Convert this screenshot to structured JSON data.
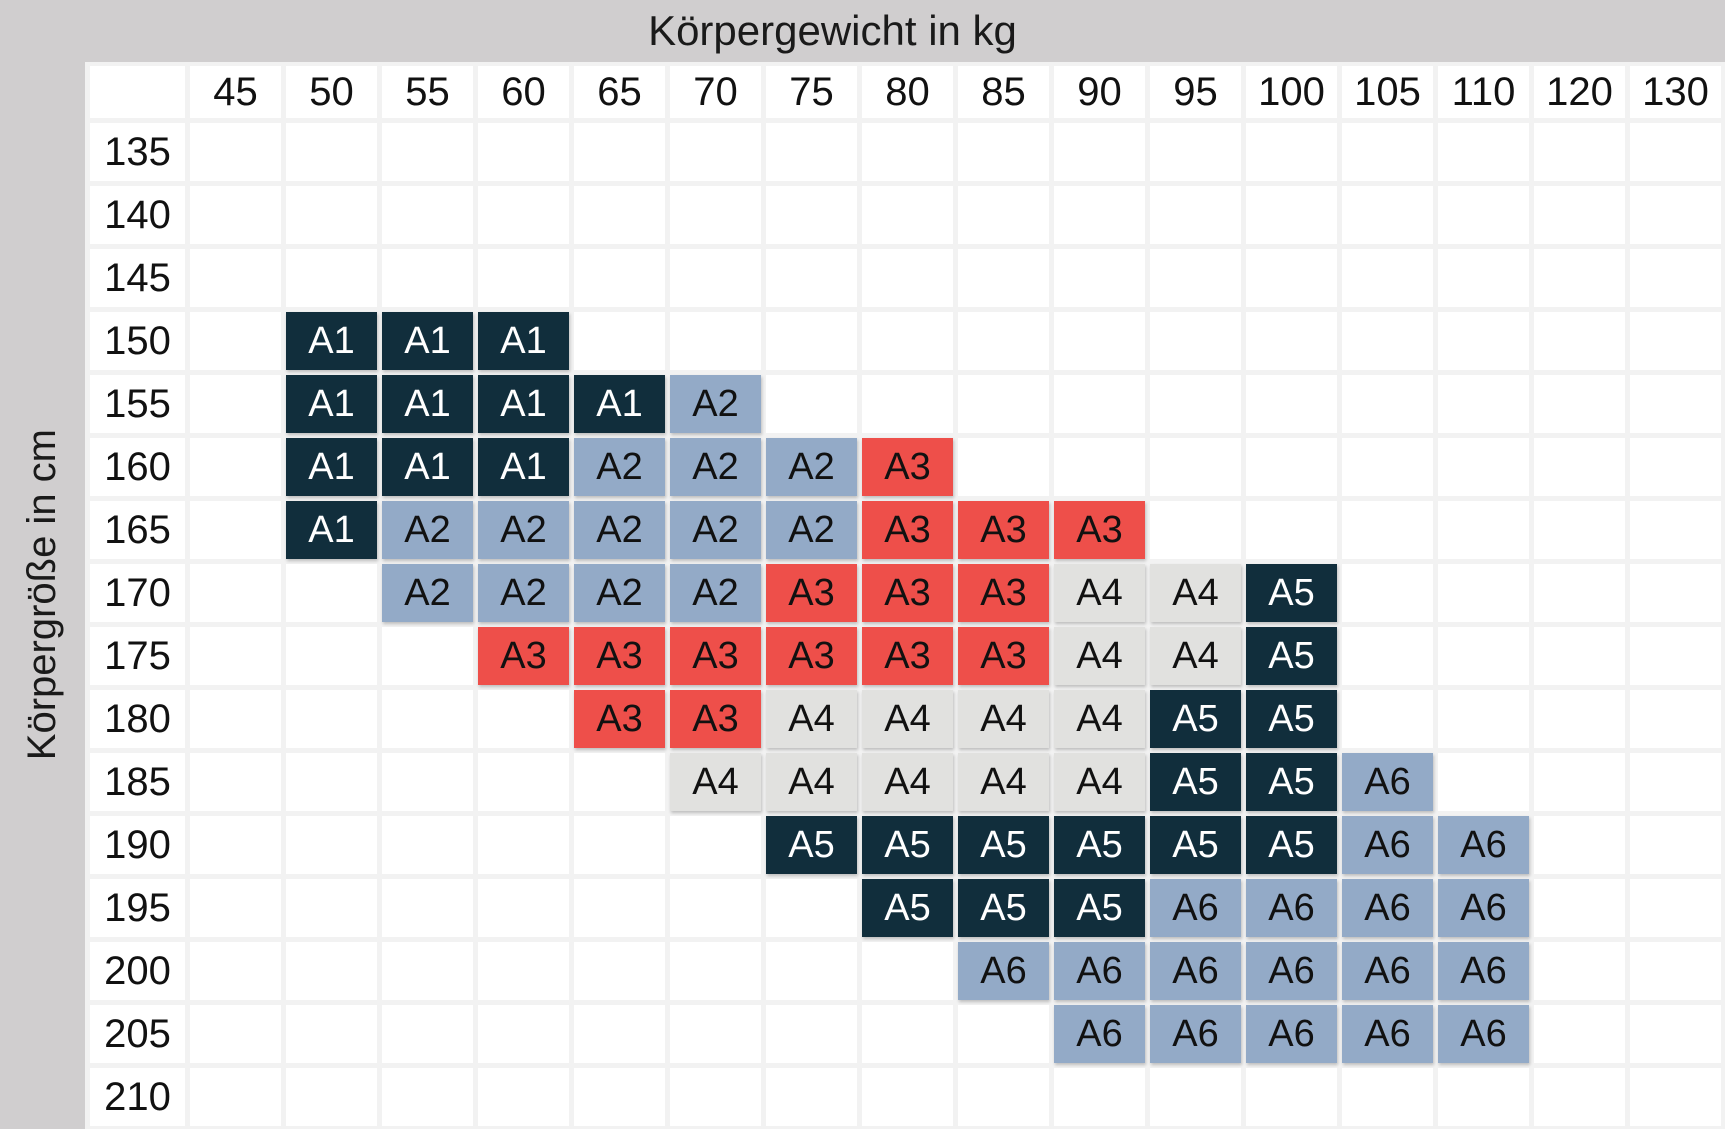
{
  "chart_data": {
    "type": "heatmap",
    "title": "Körpergewicht in kg",
    "ylabel": "Körpergröße in cm",
    "xlabel": "Körpergewicht in kg",
    "x_categories": [
      "45",
      "50",
      "55",
      "60",
      "65",
      "70",
      "75",
      "80",
      "85",
      "90",
      "95",
      "100",
      "105",
      "110",
      "120",
      "130"
    ],
    "y_categories": [
      "135",
      "140",
      "145",
      "150",
      "155",
      "160",
      "165",
      "170",
      "175",
      "180",
      "185",
      "190",
      "195",
      "200",
      "205",
      "210"
    ],
    "matrix": [
      [
        "",
        "",
        "",
        "",
        "",
        "",
        "",
        "",
        "",
        "",
        "",
        "",
        "",
        "",
        "",
        ""
      ],
      [
        "",
        "",
        "",
        "",
        "",
        "",
        "",
        "",
        "",
        "",
        "",
        "",
        "",
        "",
        "",
        ""
      ],
      [
        "",
        "",
        "",
        "",
        "",
        "",
        "",
        "",
        "",
        "",
        "",
        "",
        "",
        "",
        "",
        ""
      ],
      [
        "",
        "A1",
        "A1",
        "A1",
        "",
        "",
        "",
        "",
        "",
        "",
        "",
        "",
        "",
        "",
        "",
        ""
      ],
      [
        "",
        "A1",
        "A1",
        "A1",
        "A1",
        "A2",
        "",
        "",
        "",
        "",
        "",
        "",
        "",
        "",
        "",
        ""
      ],
      [
        "",
        "A1",
        "A1",
        "A1",
        "A2",
        "A2",
        "A2",
        "A3",
        "",
        "",
        "",
        "",
        "",
        "",
        "",
        ""
      ],
      [
        "",
        "A1",
        "A2",
        "A2",
        "A2",
        "A2",
        "A2",
        "A3",
        "A3",
        "A3",
        "",
        "",
        "",
        "",
        "",
        ""
      ],
      [
        "",
        "",
        "A2",
        "A2",
        "A2",
        "A2",
        "A3",
        "A3",
        "A3",
        "A4",
        "A4",
        "A5",
        "",
        "",
        "",
        ""
      ],
      [
        "",
        "",
        "",
        "A3",
        "A3",
        "A3",
        "A3",
        "A3",
        "A3",
        "A4",
        "A4",
        "A5",
        "",
        "",
        "",
        ""
      ],
      [
        "",
        "",
        "",
        "",
        "A3",
        "A3",
        "A4",
        "A4",
        "A4",
        "A4",
        "A5",
        "A5",
        "",
        "",
        "",
        ""
      ],
      [
        "",
        "",
        "",
        "",
        "",
        "A4",
        "A4",
        "A4",
        "A4",
        "A4",
        "A5",
        "A5",
        "A6",
        "",
        "",
        ""
      ],
      [
        "",
        "",
        "",
        "",
        "",
        "",
        "A5",
        "A5",
        "A5",
        "A5",
        "A5",
        "A5",
        "A6",
        "A6",
        "",
        ""
      ],
      [
        "",
        "",
        "",
        "",
        "",
        "",
        "",
        "A5",
        "A5",
        "A5",
        "A6",
        "A6",
        "A6",
        "A6",
        "",
        ""
      ],
      [
        "",
        "",
        "",
        "",
        "",
        "",
        "",
        "",
        "A6",
        "A6",
        "A6",
        "A6",
        "A6",
        "A6",
        "",
        ""
      ],
      [
        "",
        "",
        "",
        "",
        "",
        "",
        "",
        "",
        "",
        "A6",
        "A6",
        "A6",
        "A6",
        "A6",
        "",
        ""
      ],
      [
        "",
        "",
        "",
        "",
        "",
        "",
        "",
        "",
        "",
        "",
        "",
        "",
        "",
        "",
        "",
        ""
      ]
    ],
    "size_styles": {
      "A1": {
        "bg": "#112e3c",
        "fg": "#ffffff"
      },
      "A2": {
        "bg": "#93aac7",
        "fg": "#111111"
      },
      "A3": {
        "bg": "#ee4f4a",
        "fg": "#111111"
      },
      "A4": {
        "bg": "#e1e1df",
        "fg": "#111111"
      },
      "A5": {
        "bg": "#112e3c",
        "fg": "#ffffff"
      },
      "A6": {
        "bg": "#93aac7",
        "fg": "#111111"
      }
    },
    "layout": {
      "band_color": "#d0cecf",
      "background_color": "#f2f2f2",
      "cell_color": "#ffffff",
      "grid_on": true,
      "legend_position": "none"
    }
  }
}
